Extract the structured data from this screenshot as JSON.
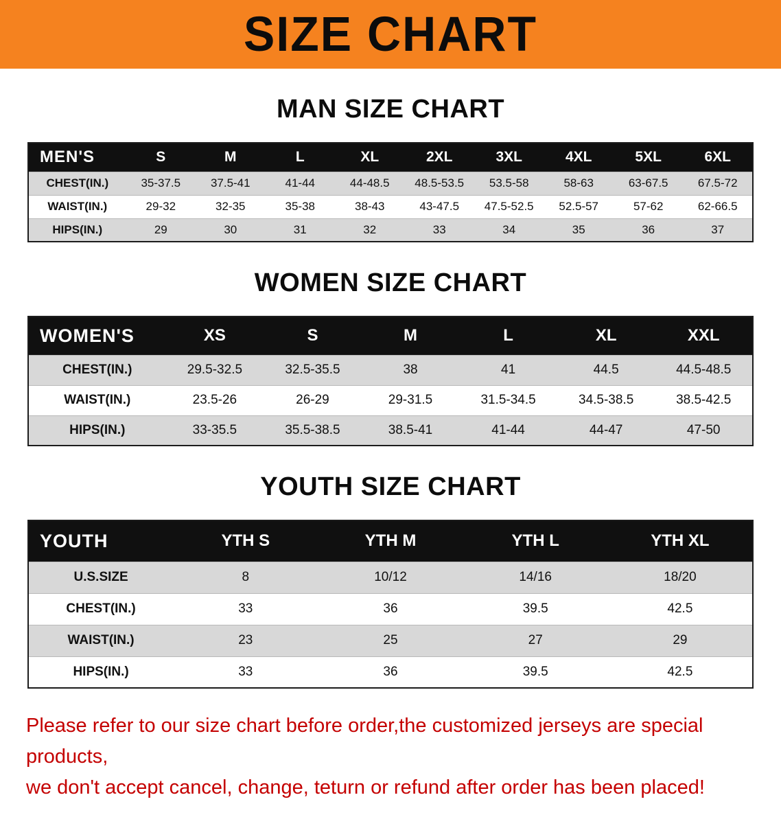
{
  "banner": {
    "title": "SIZE CHART"
  },
  "colors": {
    "banner_bg": "#f5821f",
    "header_bg": "#101010",
    "row_alt_bg": "#d8d8d8",
    "notice_text": "#c40000"
  },
  "sections": {
    "men": {
      "heading": "MAN SIZE CHART",
      "table": {
        "header": [
          "MEN'S",
          "S",
          "M",
          "L",
          "XL",
          "2XL",
          "3XL",
          "4XL",
          "5XL",
          "6XL"
        ],
        "rows": [
          [
            "CHEST(IN.)",
            "35-37.5",
            "37.5-41",
            "41-44",
            "44-48.5",
            "48.5-53.5",
            "53.5-58",
            "58-63",
            "63-67.5",
            "67.5-72"
          ],
          [
            "WAIST(IN.)",
            "29-32",
            "32-35",
            "35-38",
            "38-43",
            "43-47.5",
            "47.5-52.5",
            "52.5-57",
            "57-62",
            "62-66.5"
          ],
          [
            "HIPS(IN.)",
            "29",
            "30",
            "31",
            "32",
            "33",
            "34",
            "35",
            "36",
            "37"
          ]
        ]
      }
    },
    "women": {
      "heading": "WOMEN SIZE CHART",
      "table": {
        "header": [
          "WOMEN'S",
          "XS",
          "S",
          "M",
          "L",
          "XL",
          "XXL"
        ],
        "rows": [
          [
            "CHEST(IN.)",
            "29.5-32.5",
            "32.5-35.5",
            "38",
            "41",
            "44.5",
            "44.5-48.5"
          ],
          [
            "WAIST(IN.)",
            "23.5-26",
            "26-29",
            "29-31.5",
            "31.5-34.5",
            "34.5-38.5",
            "38.5-42.5"
          ],
          [
            "HIPS(IN.)",
            "33-35.5",
            "35.5-38.5",
            "38.5-41",
            "41-44",
            "44-47",
            "47-50"
          ]
        ]
      }
    },
    "youth": {
      "heading": "YOUTH SIZE CHART",
      "table": {
        "header": [
          "YOUTH",
          "YTH S",
          "YTH M",
          "YTH L",
          "YTH XL"
        ],
        "rows": [
          [
            "U.S.SIZE",
            "8",
            "10/12",
            "14/16",
            "18/20"
          ],
          [
            "CHEST(IN.)",
            "33",
            "36",
            "39.5",
            "42.5"
          ],
          [
            "WAIST(IN.)",
            "23",
            "25",
            "27",
            "29"
          ],
          [
            "HIPS(IN.)",
            "33",
            "36",
            "39.5",
            "42.5"
          ]
        ]
      }
    }
  },
  "notice": {
    "lines": [
      "Please refer to our size chart before order,the customized jerseys are special products,",
      "we don't accept cancel, change, teturn or refund after order has been placed!"
    ]
  }
}
